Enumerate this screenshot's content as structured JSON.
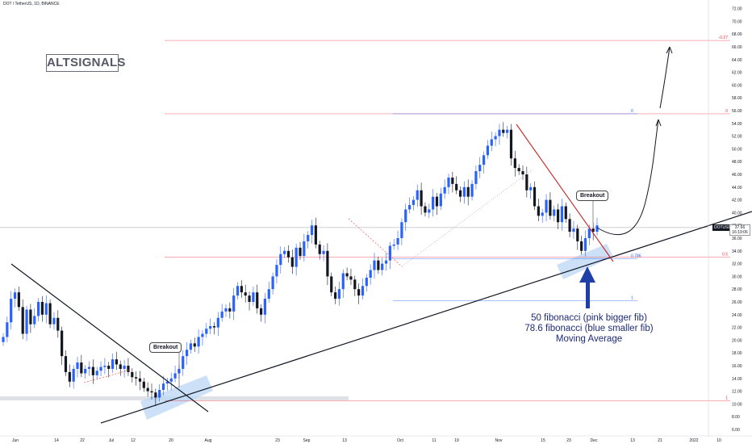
{
  "header": {
    "title": "DOT / TetherUS, 1D, BINANCE"
  },
  "brand": {
    "label": "ALTSIGNALS"
  },
  "annotation": {
    "line1": "50 fibonacci (pink bigger fib)",
    "line2": "78.6 fibonacci (blue smaller fib)",
    "line3": "Moving Average"
  },
  "breakouts": {
    "left": "Breakout",
    "right": "Breakout"
  },
  "price_badge": {
    "symbol": "DOTUSDT",
    "price": "37.66",
    "countdown": "16:19:06"
  },
  "colors": {
    "up": "#2962ff",
    "down": "#131722",
    "fib_pink": "#f23645",
    "fib_blue": "#2962ff",
    "trend": "#131722",
    "zone": "#bbd6f5",
    "note": "#1e2a78"
  },
  "chart_data": {
    "type": "candlestick",
    "title": "DOT / TetherUS, 1D, BINANCE",
    "ylim": [
      5,
      73
    ],
    "y_ticks": [
      "72.00",
      "70.00",
      "68.00",
      "66.00",
      "64.00",
      "62.00",
      "60.00",
      "58.00",
      "56.00",
      "54.00",
      "52.00",
      "50.00",
      "48.00",
      "46.00",
      "44.00",
      "42.00",
      "40.00",
      "38.00",
      "36.00",
      "34.00",
      "32.00",
      "30.00",
      "28.00",
      "26.00",
      "24.00",
      "22.00",
      "20.00",
      "18.00",
      "16.00",
      "14.00",
      "12.00",
      "10.00",
      "8.00",
      "6.00"
    ],
    "x_ticks": [
      "Jun",
      "14",
      "22",
      "Jul",
      "12",
      "20",
      "Aug",
      "23",
      "Sep",
      "13",
      "Oct",
      "11",
      "19",
      "Nov",
      "15",
      "23",
      "Dec",
      "13",
      "21",
      "2022",
      "10"
    ],
    "fib_pink": [
      {
        "label": "-0.27",
        "price": 67.0
      },
      {
        "label": "0",
        "price": 55.5
      },
      {
        "label": "0.5",
        "price": 33.0
      },
      {
        "label": "1",
        "price": 10.5
      }
    ],
    "fib_blue": [
      {
        "label": "0",
        "price": 55.5
      },
      {
        "label": "0.786",
        "price": 32.8
      },
      {
        "label": "1",
        "price": 26.2
      }
    ],
    "last_price": 37.66,
    "closes": [
      20.5,
      22.8,
      26.5,
      27.5,
      25.2,
      21.0,
      24.8,
      22.5,
      23.8,
      26.0,
      24.0,
      25.8,
      22.5,
      23.5,
      21.5,
      17.5,
      15.0,
      13.5,
      15.5,
      16.5,
      14.8,
      15.5,
      15.8,
      14.5,
      15.2,
      15.8,
      16.0,
      15.5,
      17.0,
      16.2,
      15.5,
      16.0,
      15.0,
      14.2,
      14.0,
      13.5,
      12.5,
      12.0,
      11.8,
      11.0,
      12.2,
      13.2,
      13.5,
      14.0,
      14.8,
      15.5,
      17.5,
      18.5,
      19.5,
      19.0,
      20.5,
      21.0,
      21.8,
      22.2,
      22.0,
      23.5,
      24.5,
      25.0,
      24.5,
      27.0,
      28.5,
      27.5,
      27.0,
      26.0,
      27.5,
      25.0,
      24.0,
      26.5,
      28.0,
      30.0,
      31.8,
      33.5,
      34.0,
      33.0,
      31.5,
      34.5,
      33.2,
      35.5,
      36.5,
      38.0,
      35.0,
      33.5,
      34.0,
      30.0,
      27.5,
      26.5,
      28.0,
      30.5,
      30.0,
      29.5,
      28.0,
      27.0,
      28.5,
      29.8,
      31.0,
      32.5,
      31.0,
      32.0,
      32.5,
      34.8,
      35.0,
      36.0,
      38.5,
      40.5,
      41.2,
      42.0,
      43.5,
      41.0,
      40.0,
      40.5,
      42.5,
      41.0,
      43.0,
      44.0,
      45.5,
      44.5,
      43.5,
      42.5,
      44.0,
      42.5,
      44.5,
      46.5,
      47.5,
      49.0,
      50.5,
      51.5,
      52.0,
      53.0,
      52.5,
      53.0,
      48.5,
      47.0,
      46.5,
      46.0,
      43.5,
      44.0,
      41.0,
      39.5,
      40.0,
      42.0,
      39.5,
      40.5,
      38.5,
      41.0,
      39.0,
      37.0,
      37.5,
      35.5,
      34.0,
      36.0,
      37.5,
      37.0,
      38.0
    ],
    "annotation_lines": [
      "50 fibonacci (pink bigger fib)",
      "78.6 fibonacci (blue smaller fib)",
      "Moving Average"
    ]
  }
}
